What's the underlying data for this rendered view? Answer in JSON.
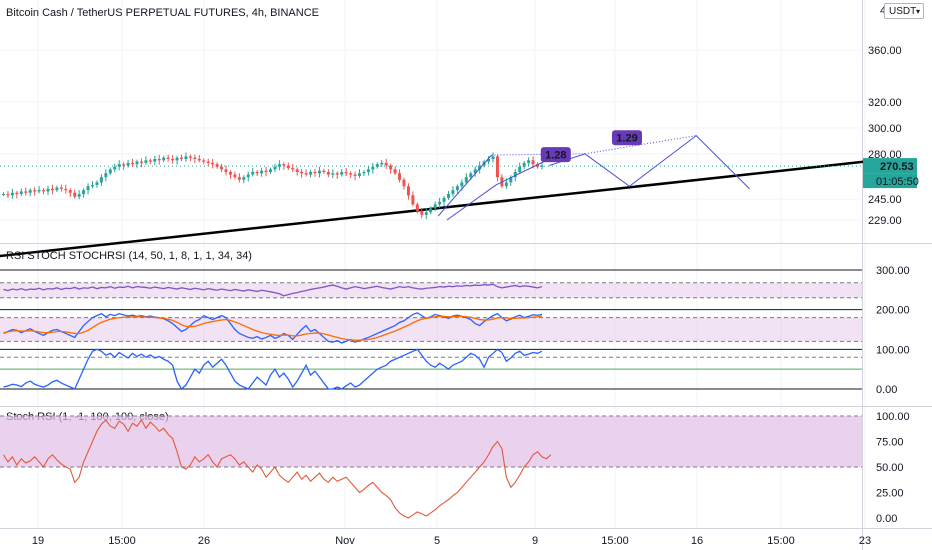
{
  "main_title": "Bitcoin Cash / TetherUS PERPETUAL FUTURES, 4h, BINANCE",
  "currency_button": "USDT",
  "currency_dropdown_icon": "chevron-down-icon",
  "price_axis_partial_label": "4",
  "price_badge": {
    "value": "270.53",
    "color": "#26a69a"
  },
  "countdown_badge": {
    "value": "01:05:50",
    "color": "#26a69a"
  },
  "pattern_labels": [
    "1.28",
    "1.29"
  ],
  "pattern_label_color": "#673ab7",
  "colors": {
    "up_candle": "#26a69a",
    "down_candle": "#ef5350",
    "rsi_line": "#7e57c2",
    "stoch_k": "#2962ff",
    "stoch_d": "#ff6d00",
    "trendline": "#000000",
    "projection": "#4a4fd8",
    "stochrsi_line": "#e05a3a",
    "band_fill": "#e1bee7",
    "green_level": "#4caf50"
  },
  "indicator1_title": "RSI STOCH STOCHRSI (14, 50, 1, 8, 1, 1, 34, 34)",
  "indicator2_title": "Stoch RSI (1, -1, 100, 100, close)",
  "chart_data": [
    {
      "type": "candlestick",
      "title": "Bitcoin Cash / TetherUS PERPETUAL FUTURES, 4h, BINANCE",
      "y_ticks": [
        "360.00",
        "320.00",
        "300.00",
        "280.00",
        "270.53",
        "245.00",
        "229.00"
      ],
      "x_ticks": [
        "19",
        "15:00",
        "26",
        "Nov",
        "5",
        "9",
        "15:00",
        "16",
        "15:00",
        "23"
      ],
      "last_price": 270.53,
      "close_series": [
        249,
        248,
        250,
        249,
        251,
        250,
        252,
        251,
        252,
        251,
        253,
        252,
        254,
        253,
        252,
        250,
        247,
        249,
        252,
        255,
        256,
        258,
        262,
        265,
        268,
        270,
        272,
        271,
        273,
        272,
        274,
        273,
        275,
        274,
        276,
        275,
        277,
        276,
        275,
        277,
        276,
        278,
        277,
        276,
        275,
        274,
        273,
        272,
        270,
        268,
        266,
        264,
        262,
        260,
        262,
        264,
        266,
        265,
        267,
        266,
        268,
        270,
        272,
        271,
        269,
        268,
        266,
        265,
        264,
        266,
        265,
        267,
        266,
        264,
        265,
        264,
        266,
        265,
        264,
        263,
        265,
        266,
        268,
        270,
        272,
        273,
        271,
        268,
        265,
        260,
        255,
        248,
        241,
        236,
        233,
        235,
        238,
        241,
        243,
        246,
        249,
        252,
        255,
        258,
        262,
        265,
        268,
        271,
        274,
        276,
        278,
        262,
        255,
        258,
        262,
        266,
        270,
        273,
        275,
        272,
        270,
        271
      ],
      "trendline": {
        "from": [
          0,
          218
        ],
        "to": [
          183,
          265
        ]
      },
      "projection": [
        [
          123,
          271
        ],
        [
          131,
          280
        ],
        [
          141,
          255
        ],
        [
          156,
          294
        ],
        [
          168,
          253
        ]
      ],
      "fib_labels": [
        {
          "label": "1.28",
          "at": [
            124,
            279
          ]
        },
        {
          "label": "1.29",
          "at": [
            140,
            292
          ]
        }
      ]
    },
    {
      "type": "line",
      "title": "RSI STOCH STOCHRSI (14, 50, 1, 8, 1, 1, 34, 34)",
      "y_ticks": [
        "300.00",
        "200.00",
        "100.00",
        "0.00"
      ],
      "bands": [
        [
          230,
          268
        ],
        [
          120,
          180
        ],
        [
          80,
          80
        ]
      ],
      "levels": [
        {
          "value": 50,
          "color": "#4caf50"
        }
      ],
      "series": [
        {
          "name": "",
          "color": "#7e57c2",
          "values": [
            251,
            248,
            252,
            250,
            253,
            249,
            252,
            251,
            254,
            250,
            253,
            252,
            255,
            251,
            254,
            253,
            256,
            252,
            255,
            254,
            257,
            253,
            256,
            255,
            258,
            254,
            257,
            256,
            259,
            255,
            258,
            257,
            256,
            254,
            257,
            255,
            253,
            256,
            254,
            252,
            255,
            253,
            251,
            254,
            252,
            250,
            253,
            251,
            249,
            252,
            250,
            248,
            251,
            249,
            247,
            250,
            248,
            246,
            249,
            247,
            245,
            243,
            240,
            235,
            238,
            241,
            243,
            246,
            248,
            251,
            253,
            255,
            257,
            260,
            262,
            259,
            255,
            252,
            255,
            258,
            256,
            253,
            255,
            257,
            259,
            256,
            254,
            252,
            255,
            258,
            256,
            258,
            255,
            253,
            252,
            254,
            255,
            256,
            258,
            257,
            259,
            258,
            260,
            259,
            261,
            260,
            262,
            261,
            263,
            262,
            264,
            258,
            255,
            257,
            259,
            261,
            258,
            260,
            259,
            257,
            255,
            258
          ]
        },
        {
          "name": "",
          "color": "#2962ff",
          "values": [
            140,
            145,
            150,
            148,
            142,
            147,
            152,
            145,
            140,
            135,
            142,
            148,
            150,
            145,
            140,
            135,
            130,
            145,
            160,
            170,
            180,
            185,
            190,
            182,
            188,
            185,
            190,
            187,
            184,
            186,
            183,
            185,
            182,
            184,
            181,
            180,
            177,
            172,
            165,
            155,
            145,
            150,
            160,
            170,
            175,
            185,
            180,
            175,
            180,
            185,
            180,
            165,
            150,
            140,
            135,
            130,
            128,
            132,
            126,
            130,
            135,
            128,
            132,
            140,
            135,
            125,
            138,
            150,
            160,
            145,
            150,
            140,
            130,
            120,
            118,
            122,
            116,
            120,
            125,
            118,
            122,
            126,
            130,
            135,
            140,
            145,
            150,
            155,
            160,
            168,
            172,
            180,
            188,
            192,
            185,
            178,
            182,
            188,
            185,
            182,
            178,
            184,
            186,
            183,
            180,
            175,
            165,
            160,
            170,
            178,
            185,
            190,
            180,
            172,
            176,
            182,
            186,
            180,
            183,
            187,
            186,
            188
          ]
        },
        {
          "name": "",
          "color": "#ff6d00",
          "values": [
            142,
            144,
            146,
            147,
            146,
            146,
            147,
            146,
            144,
            142,
            142,
            143,
            145,
            145,
            144,
            142,
            140,
            140,
            143,
            148,
            155,
            162,
            168,
            172,
            176,
            178,
            180,
            181,
            181,
            182,
            182,
            182,
            181,
            181,
            180,
            179,
            178,
            176,
            173,
            168,
            162,
            158,
            157,
            158,
            161,
            165,
            168,
            170,
            172,
            174,
            175,
            173,
            169,
            165,
            160,
            155,
            150,
            146,
            142,
            140,
            138,
            136,
            135,
            136,
            136,
            134,
            134,
            136,
            139,
            140,
            141,
            141,
            139,
            136,
            133,
            130,
            127,
            125,
            124,
            123,
            123,
            124,
            125,
            127,
            130,
            134,
            138,
            142,
            146,
            151,
            156,
            161,
            167,
            172,
            176,
            178,
            180,
            182,
            183,
            183,
            182,
            182,
            183,
            183,
            182,
            181,
            178,
            175,
            174,
            174,
            176,
            179,
            180,
            179,
            178,
            178,
            179,
            179,
            180,
            181,
            182,
            183
          ]
        },
        {
          "name": "",
          "color": "#2962ff",
          "values": [
            5,
            8,
            12,
            10,
            6,
            15,
            20,
            12,
            8,
            5,
            10,
            18,
            22,
            15,
            10,
            5,
            0,
            25,
            50,
            75,
            95,
            100,
            95,
            85,
            90,
            80,
            92,
            85,
            78,
            90,
            82,
            88,
            80,
            86,
            78,
            82,
            75,
            70,
            60,
            20,
            0,
            10,
            30,
            50,
            40,
            60,
            70,
            55,
            65,
            75,
            60,
            40,
            20,
            10,
            5,
            0,
            15,
            30,
            20,
            10,
            35,
            50,
            30,
            40,
            25,
            5,
            20,
            40,
            60,
            35,
            45,
            30,
            15,
            0,
            0,
            5,
            0,
            8,
            15,
            5,
            10,
            20,
            30,
            40,
            50,
            55,
            60,
            70,
            75,
            80,
            85,
            90,
            95,
            100,
            85,
            70,
            60,
            55,
            65,
            58,
            50,
            60,
            65,
            70,
            80,
            90,
            85,
            75,
            55,
            80,
            90,
            100,
            92,
            70,
            78,
            90,
            95,
            85,
            88,
            92,
            90,
            95
          ]
        }
      ]
    },
    {
      "type": "line",
      "title": "Stoch RSI (1, -1, 100, 100, close)",
      "y_ticks": [
        "100.00",
        "75.00",
        "50.00",
        "25.00",
        "0.00"
      ],
      "bands": [
        [
          50,
          100
        ]
      ],
      "series": [
        {
          "name": "",
          "color": "#e05a3a",
          "values": [
            62,
            55,
            60,
            52,
            58,
            54,
            56,
            60,
            55,
            50,
            58,
            62,
            57,
            53,
            50,
            48,
            35,
            40,
            55,
            65,
            75,
            85,
            92,
            96,
            90,
            88,
            95,
            92,
            85,
            93,
            90,
            96,
            88,
            94,
            90,
            85,
            88,
            82,
            78,
            65,
            50,
            48,
            52,
            60,
            55,
            58,
            62,
            55,
            50,
            58,
            60,
            62,
            58,
            52,
            55,
            50,
            45,
            52,
            48,
            40,
            45,
            50,
            42,
            38,
            35,
            40,
            45,
            38,
            42,
            36,
            40,
            44,
            38,
            35,
            40,
            36,
            38,
            40,
            35,
            30,
            25,
            28,
            32,
            35,
            30,
            25,
            22,
            18,
            10,
            5,
            2,
            0,
            3,
            6,
            4,
            2,
            5,
            8,
            12,
            15,
            18,
            22,
            25,
            30,
            35,
            40,
            45,
            50,
            55,
            62,
            70,
            75,
            68,
            40,
            30,
            35,
            42,
            50,
            55,
            62,
            65,
            60,
            58,
            62
          ]
        }
      ]
    }
  ]
}
